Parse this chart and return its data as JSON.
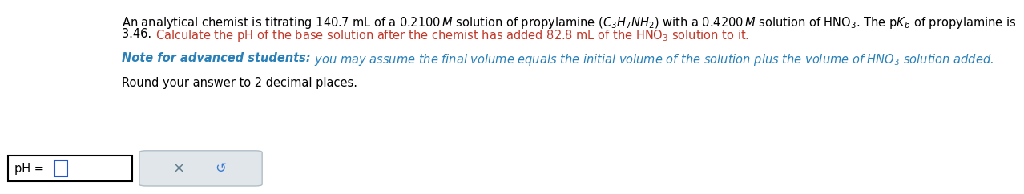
{
  "main_color": "#000000",
  "red_color": "#c0392b",
  "blue_color": "#2980b9",
  "background": "#ffffff",
  "font_size": 10.5,
  "font_family": "DejaVu Sans",
  "fig_width": 11.82,
  "fig_height": 2.74,
  "line1": "An analytical chemist is titrating 140.7 mL of a 0.2100$\\,\\mathit{M}$ solution of propylamine $(C_3H_7NH_2)$ with a 0.4200$\\,\\mathit{M}$ solution of HNO$_3$. The p$K_b$ of propylamine is",
  "line2_black": "3.46. ",
  "line2_red": "Calculate the pH of the base solution after the chemist has added 82.8 mL of the HNO$_3$ solution to it.",
  "note_bold": "Note for advanced students:",
  "note_rest": " you may assume the final volume equals the initial volume of the solution plus the volume of HNO$_3$ solution added.",
  "round_line": "Round your answer to 2 decimal places.",
  "ph_label": "pH = "
}
